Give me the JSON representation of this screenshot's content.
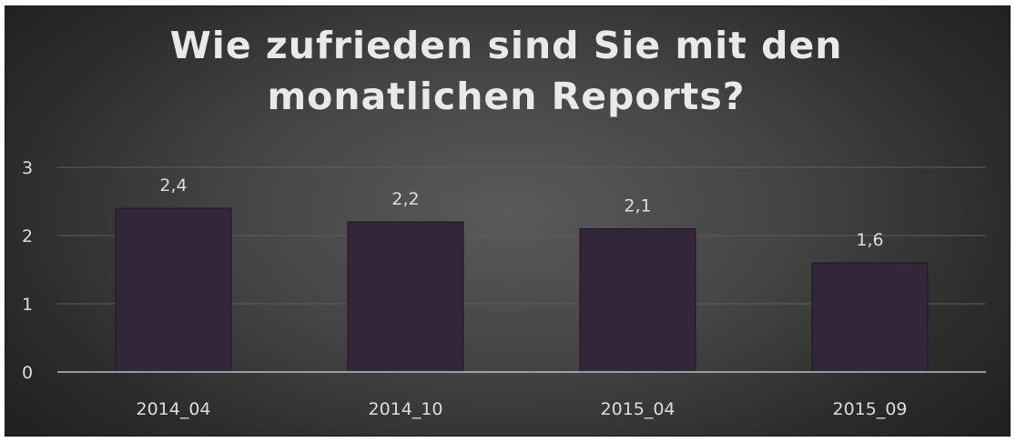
{
  "chart_data": {
    "type": "bar",
    "title": "Wie zufrieden sind Sie mit den\nmonatlichen Reports?",
    "categories": [
      "2014_04",
      "2014_10",
      "2015_04",
      "2015_09"
    ],
    "values": [
      2.4,
      2.2,
      2.1,
      1.6
    ],
    "data_labels": [
      "2,4",
      "2,2",
      "2,1",
      "1,6"
    ],
    "y_ticks": [
      "0",
      "1",
      "2",
      "3"
    ],
    "ylim": [
      0,
      3
    ],
    "grid": true,
    "legend": "none",
    "xlabel": "",
    "ylabel": ""
  },
  "colors": {
    "background": "#3f3f3f",
    "bar_fill": "#31263a",
    "bar_edge": "#1c1620",
    "gridline": "#5f5f5f",
    "axis_line": "#bdbdbd",
    "text": "#dcdcdc",
    "title": "#e9e9e9"
  }
}
